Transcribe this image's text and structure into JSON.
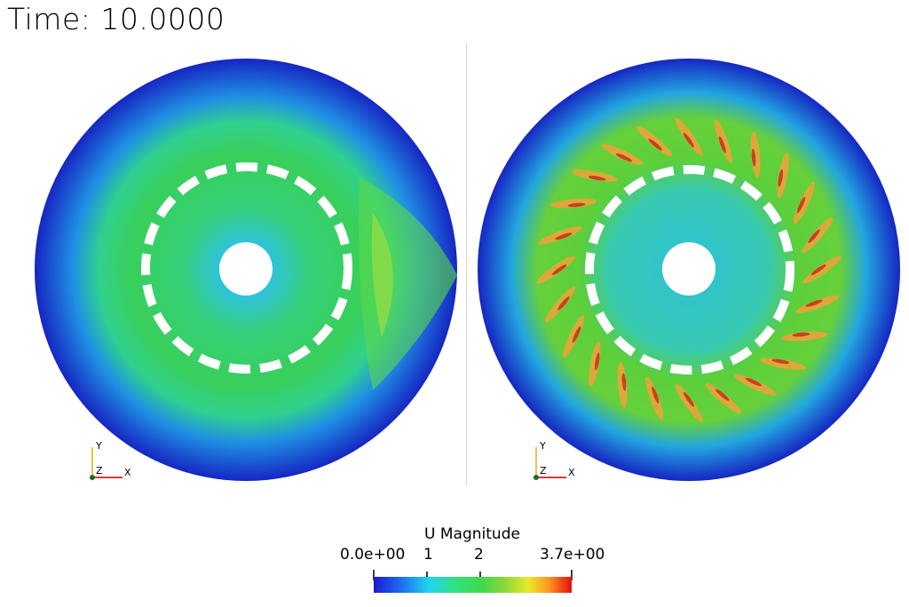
{
  "time_label": "Time: 10.0000",
  "views": [
    {
      "axes": {
        "x": "X",
        "y": "Y",
        "z": "Z"
      }
    },
    {
      "axes": {
        "x": "X",
        "y": "Y",
        "z": "Z"
      }
    }
  ],
  "legend": {
    "title": "U Magnitude",
    "ticks": [
      "0.0e+00",
      "1",
      "2",
      "3.7e+00"
    ],
    "range": [
      0.0,
      3.7
    ],
    "tick_values": [
      0.0,
      1,
      2,
      3.7
    ],
    "colormap": [
      "#1a1ad0",
      "#1f6ef0",
      "#1fd6f0",
      "#34e07a",
      "#42d84a",
      "#8ad83a",
      "#e6ea2a",
      "#ff9a22",
      "#e01212"
    ]
  }
}
